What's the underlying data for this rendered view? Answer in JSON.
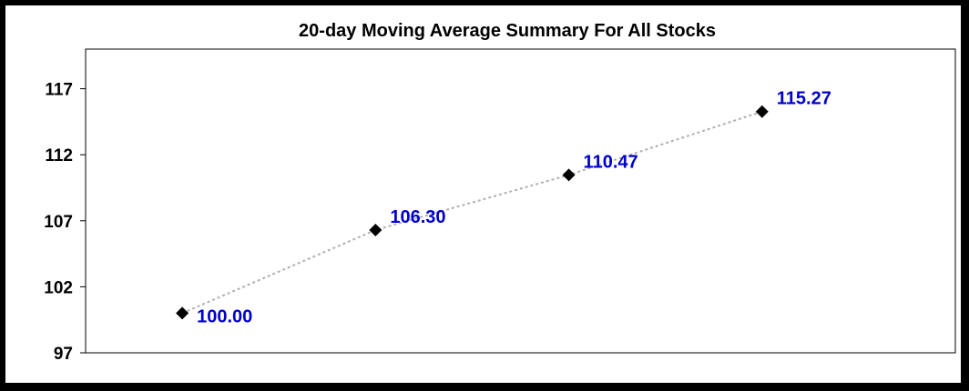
{
  "chart_data": {
    "type": "line",
    "title": "20-day Moving Average Summary For All Stocks",
    "xlabel": "",
    "ylabel": "",
    "ylim": [
      97,
      120
    ],
    "yticks": [
      97,
      102,
      107,
      112,
      117
    ],
    "ytick_labels": [
      "97",
      "102",
      "107",
      "112",
      "117"
    ],
    "grid": false,
    "legend": "none",
    "series": [
      {
        "values": [
          100.0,
          106.3,
          110.47,
          115.27
        ],
        "labels": [
          "100.00",
          "106.30",
          "110.47",
          "115.27"
        ],
        "line_color": "#b0b0b0",
        "marker_color": "#000000",
        "label_color": "#0000cc"
      }
    ]
  }
}
